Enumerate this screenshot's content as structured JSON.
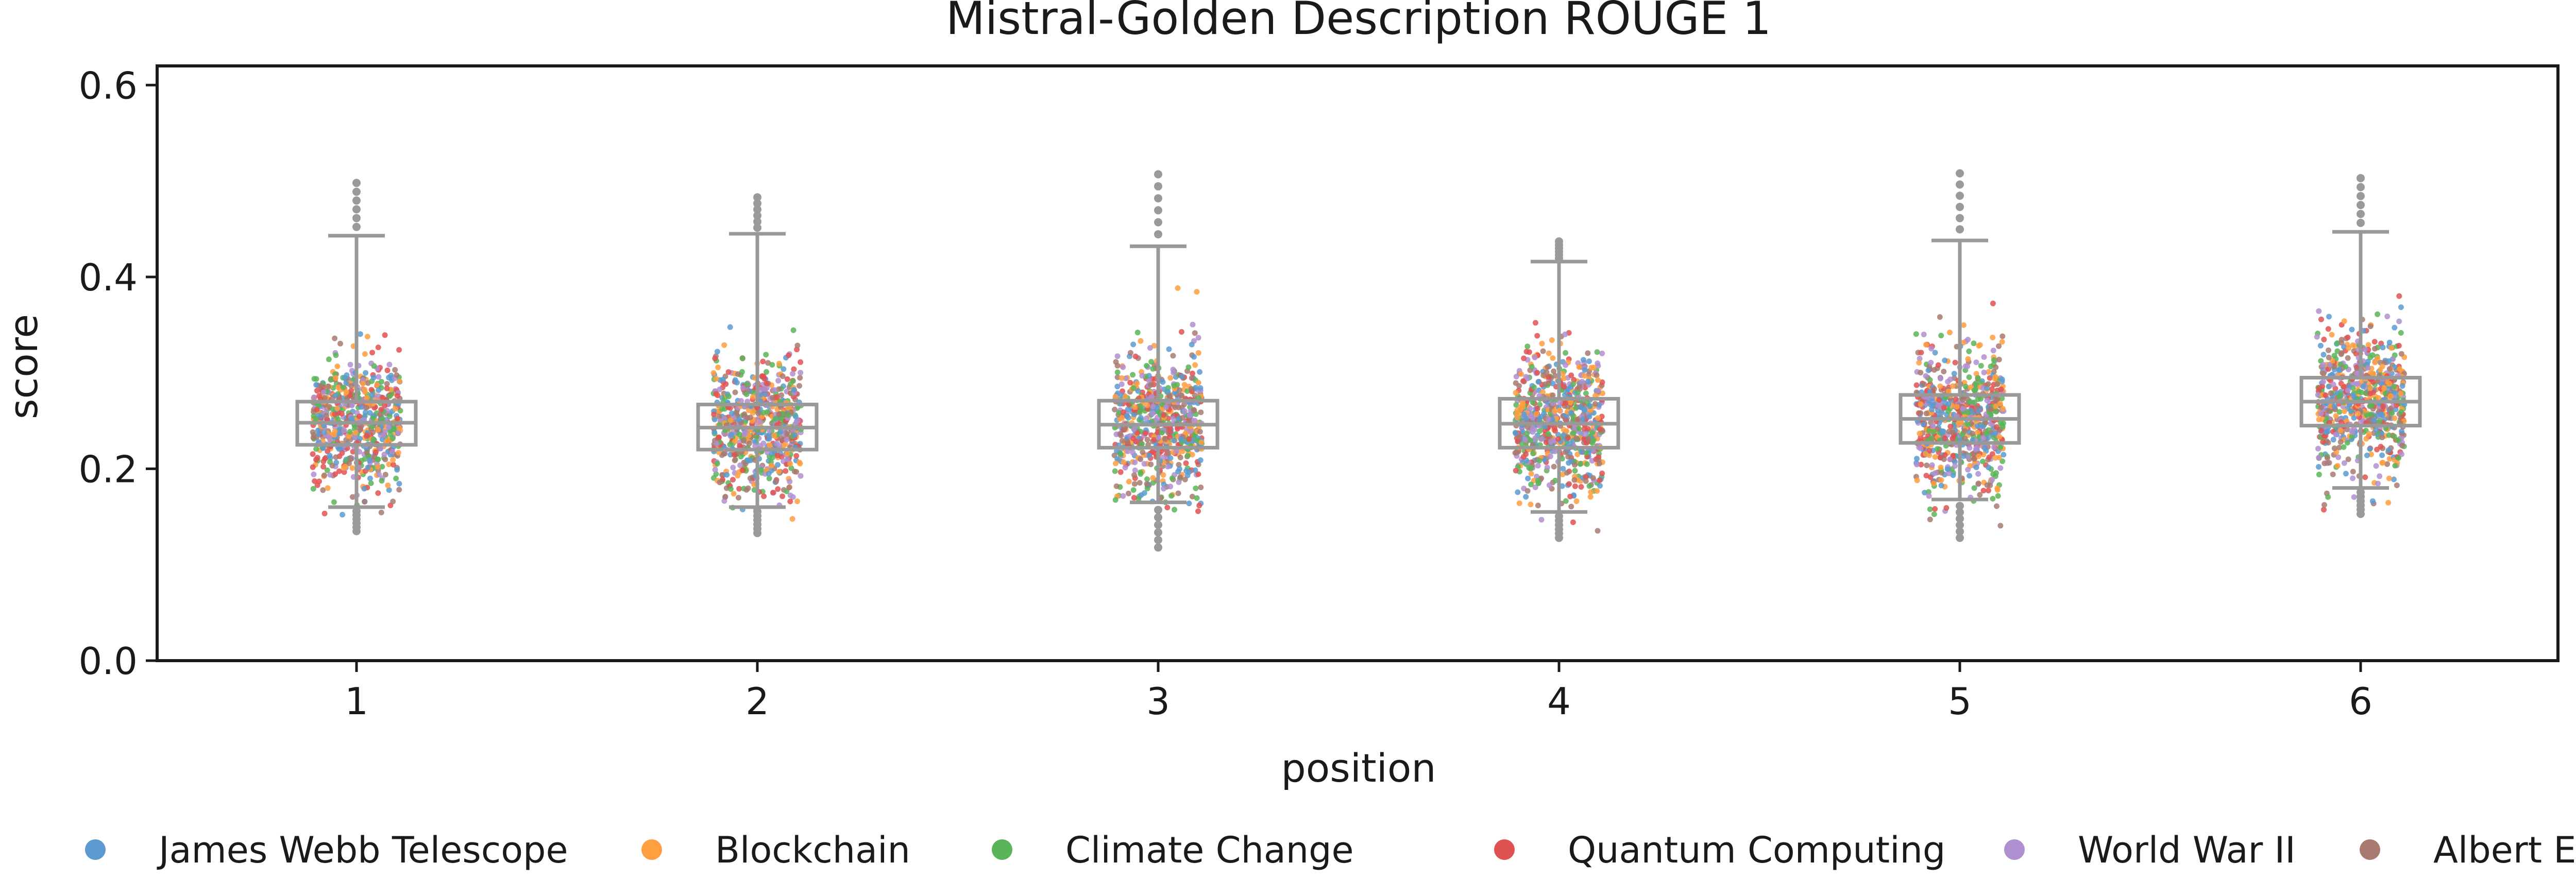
{
  "chart_data": {
    "type": "box",
    "title": "Mistral-Golden Description ROUGE 1",
    "xlabel": "position",
    "ylabel": "score",
    "ylim": [
      0,
      0.62
    ],
    "yticks": [
      "0.0",
      "0.2",
      "0.4",
      "0.6"
    ],
    "yticks_values": [
      0.0,
      0.2,
      0.4,
      0.6
    ],
    "categories": [
      "1",
      "2",
      "3",
      "4",
      "5",
      "6"
    ],
    "boxes": [
      {
        "position": "1",
        "whisker_low": 0.16,
        "q1": 0.225,
        "median": 0.248,
        "q3": 0.27,
        "whisker_high": 0.443,
        "min": 0.135,
        "max": 0.498
      },
      {
        "position": "2",
        "whisker_low": 0.16,
        "q1": 0.22,
        "median": 0.243,
        "q3": 0.267,
        "whisker_high": 0.445,
        "min": 0.133,
        "max": 0.483
      },
      {
        "position": "3",
        "whisker_low": 0.165,
        "q1": 0.222,
        "median": 0.246,
        "q3": 0.271,
        "whisker_high": 0.432,
        "min": 0.118,
        "max": 0.507
      },
      {
        "position": "4",
        "whisker_low": 0.155,
        "q1": 0.222,
        "median": 0.247,
        "q3": 0.273,
        "whisker_high": 0.416,
        "min": 0.128,
        "max": 0.437
      },
      {
        "position": "5",
        "whisker_low": 0.168,
        "q1": 0.227,
        "median": 0.252,
        "q3": 0.277,
        "whisker_high": 0.438,
        "min": 0.128,
        "max": 0.508
      },
      {
        "position": "6",
        "whisker_low": 0.18,
        "q1": 0.245,
        "median": 0.27,
        "q3": 0.295,
        "whisker_high": 0.447,
        "min": 0.153,
        "max": 0.503
      }
    ],
    "series": [
      {
        "name": "James Webb Telescope",
        "color": "#5b9bd0"
      },
      {
        "name": "Blockchain",
        "color": "#ff9f40"
      },
      {
        "name": "Climate Change",
        "color": "#5ab55a"
      },
      {
        "name": "Quantum Computing",
        "color": "#e05252"
      },
      {
        "name": "World War II",
        "color": "#b08fd0"
      },
      {
        "name": "Albert Einstein",
        "color": "#a87a70"
      }
    ],
    "style": {
      "box_color": "#999999",
      "outlier_color": "#9a9a9a",
      "grid": false,
      "legend_placement": "bottom"
    }
  }
}
